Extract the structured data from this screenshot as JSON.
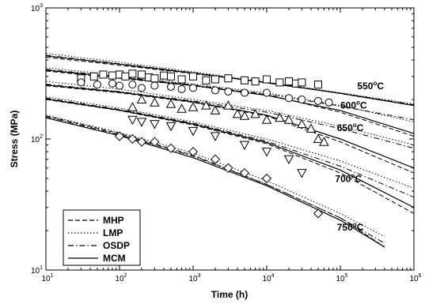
{
  "chart_data": {
    "type": "line",
    "xlabel": "Time (h)",
    "ylabel": "Stress (MPa)",
    "xscale": "log",
    "yscale": "log",
    "xlim": [
      10,
      1000000
    ],
    "ylim": [
      10,
      1000
    ],
    "x_ticks": [
      {
        "value": 10,
        "base": "10",
        "exp": "1"
      },
      {
        "value": 100,
        "base": "10",
        "exp": "2"
      },
      {
        "value": 1000,
        "base": "10",
        "exp": "3"
      },
      {
        "value": 10000,
        "base": "10",
        "exp": "4"
      },
      {
        "value": 100000,
        "base": "10",
        "exp": "5"
      },
      {
        "value": 1000000,
        "base": "10",
        "exp": "6"
      }
    ],
    "y_ticks": [
      {
        "value": 10,
        "base": "10",
        "exp": "1"
      },
      {
        "value": 100,
        "base": "10",
        "exp": "2"
      },
      {
        "value": 1000,
        "base": "10",
        "exp": "3"
      }
    ],
    "legend": {
      "position": "bottom-left",
      "entries": [
        {
          "name": "MHP",
          "dash": "dashed"
        },
        {
          "name": "LMP",
          "dash": "dotted"
        },
        {
          "name": "OSDP",
          "dash": "dashdot"
        },
        {
          "name": "MCM",
          "dash": "solid"
        }
      ]
    },
    "temperatures": [
      {
        "label_base": "550",
        "label_sup": "o",
        "label_unit": "C",
        "label_at": {
          "x": 170000,
          "y": 240
        },
        "marker": "square",
        "points": [
          [
            30,
            290
          ],
          [
            45,
            300
          ],
          [
            60,
            310
          ],
          [
            80,
            305
          ],
          [
            100,
            310
          ],
          [
            120,
            300
          ],
          [
            150,
            315
          ],
          [
            200,
            310
          ],
          [
            250,
            295
          ],
          [
            300,
            290
          ],
          [
            400,
            305
          ],
          [
            500,
            300
          ],
          [
            700,
            285
          ],
          [
            1000,
            300
          ],
          [
            1500,
            280
          ],
          [
            2000,
            285
          ],
          [
            3000,
            290
          ],
          [
            5000,
            280
          ],
          [
            7000,
            275
          ],
          [
            10000,
            285
          ],
          [
            15000,
            270
          ],
          [
            20000,
            275
          ],
          [
            25000,
            265
          ],
          [
            30000,
            270
          ],
          [
            50000,
            260
          ]
        ],
        "curves": {
          "MHP": [
            [
              10,
              420
            ],
            [
              100,
              365
            ],
            [
              1000,
              315
            ],
            [
              10000,
              270
            ],
            [
              100000,
              222
            ],
            [
              1000000,
              180
            ]
          ],
          "LMP": [
            [
              10,
              450
            ],
            [
              100,
              385
            ],
            [
              1000,
              325
            ],
            [
              10000,
              272
            ],
            [
              100000,
              225
            ],
            [
              1000000,
              185
            ]
          ],
          "OSDP": [
            [
              10,
              435
            ],
            [
              100,
              375
            ],
            [
              1000,
              320
            ],
            [
              10000,
              270
            ],
            [
              100000,
              224
            ],
            [
              1000000,
              182
            ]
          ],
          "MCM": [
            [
              10,
              430
            ],
            [
              100,
              372
            ],
            [
              1000,
              318
            ],
            [
              10000,
              268
            ],
            [
              100000,
              223
            ],
            [
              1000000,
              180
            ]
          ]
        }
      },
      {
        "label_base": "600",
        "label_sup": "o",
        "label_unit": "C",
        "label_at": {
          "x": 100000,
          "y": 170
        },
        "marker": "circle",
        "points": [
          [
            30,
            270
          ],
          [
            50,
            260
          ],
          [
            80,
            265
          ],
          [
            100,
            255
          ],
          [
            150,
            260
          ],
          [
            200,
            245
          ],
          [
            300,
            255
          ],
          [
            500,
            250
          ],
          [
            700,
            240
          ],
          [
            1000,
            245
          ],
          [
            2000,
            235
          ],
          [
            3000,
            230
          ],
          [
            5000,
            225
          ],
          [
            10000,
            225
          ],
          [
            20000,
            205
          ],
          [
            30000,
            200
          ],
          [
            50000,
            195
          ],
          [
            70000,
            190
          ]
        ],
        "curves": {
          "MHP": [
            [
              10,
              330
            ],
            [
              100,
              290
            ],
            [
              1000,
              255
            ],
            [
              10000,
              218
            ],
            [
              100000,
              160
            ],
            [
              1000000,
              105
            ]
          ],
          "LMP": [
            [
              10,
              350
            ],
            [
              100,
              305
            ],
            [
              1000,
              262
            ],
            [
              10000,
              225
            ],
            [
              100000,
              180
            ],
            [
              1000000,
              135
            ]
          ],
          "OSDP": [
            [
              10,
              340
            ],
            [
              100,
              298
            ],
            [
              1000,
              258
            ],
            [
              10000,
              220
            ],
            [
              100000,
              178
            ],
            [
              1000000,
              140
            ]
          ],
          "MCM": [
            [
              10,
              335
            ],
            [
              100,
              295
            ],
            [
              1000,
              255
            ],
            [
              10000,
              215
            ],
            [
              100000,
              165
            ],
            [
              1000000,
              110
            ]
          ]
        }
      },
      {
        "label_base": "650",
        "label_sup": "o",
        "label_unit": "C",
        "label_at": {
          "x": 90000,
          "y": 115
        },
        "marker": "triangle",
        "points": [
          [
            150,
            175
          ],
          [
            200,
            200
          ],
          [
            300,
            190
          ],
          [
            500,
            185
          ],
          [
            700,
            170
          ],
          [
            1000,
            175
          ],
          [
            1500,
            180
          ],
          [
            2000,
            165
          ],
          [
            3000,
            180
          ],
          [
            4000,
            155
          ],
          [
            5000,
            150
          ],
          [
            7000,
            155
          ],
          [
            10000,
            140
          ],
          [
            15000,
            145
          ],
          [
            20000,
            140
          ],
          [
            30000,
            130
          ],
          [
            40000,
            120
          ],
          [
            50000,
            100
          ],
          [
            60000,
            95
          ]
        ],
        "curves": {
          "MHP": [
            [
              10,
              255
            ],
            [
              100,
              225
            ],
            [
              1000,
              190
            ],
            [
              10000,
              150
            ],
            [
              100000,
              95
            ],
            [
              1000000,
              55
            ]
          ],
          "LMP": [
            [
              10,
              275
            ],
            [
              100,
              240
            ],
            [
              1000,
              200
            ],
            [
              10000,
              165
            ],
            [
              100000,
              125
            ],
            [
              1000000,
              90
            ]
          ],
          "OSDP": [
            [
              10,
              262
            ],
            [
              100,
              230
            ],
            [
              1000,
              195
            ],
            [
              10000,
              160
            ],
            [
              100000,
              120
            ],
            [
              1000000,
              85
            ]
          ],
          "MCM": [
            [
              10,
              258
            ],
            [
              100,
              228
            ],
            [
              1000,
              192
            ],
            [
              10000,
              152
            ],
            [
              100000,
              100
            ],
            [
              1000000,
              60
            ]
          ]
        }
      },
      {
        "label_base": "700",
        "label_sup": "o",
        "label_unit": "C",
        "label_at": {
          "x": 85000,
          "y": 47
        },
        "marker": "triangle-down",
        "points": [
          [
            150,
            140
          ],
          [
            200,
            135
          ],
          [
            300,
            130
          ],
          [
            500,
            125
          ],
          [
            1000,
            115
          ],
          [
            2000,
            105
          ],
          [
            5000,
            90
          ],
          [
            10000,
            80
          ],
          [
            20000,
            70
          ],
          [
            30000,
            55
          ]
        ],
        "curves": {
          "MHP": [
            [
              10,
              200
            ],
            [
              100,
              165
            ],
            [
              1000,
              128
            ],
            [
              10000,
              92
            ],
            [
              100000,
              55
            ],
            [
              1000000,
              27
            ]
          ],
          "LMP": [
            [
              10,
              210
            ],
            [
              100,
              172
            ],
            [
              1000,
              135
            ],
            [
              10000,
              100
            ],
            [
              100000,
              68
            ],
            [
              1000000,
              42
            ]
          ],
          "OSDP": [
            [
              10,
              205
            ],
            [
              100,
              168
            ],
            [
              1000,
              132
            ],
            [
              10000,
              96
            ],
            [
              100000,
              62
            ],
            [
              1000000,
              36
            ]
          ],
          "MCM": [
            [
              10,
              202
            ],
            [
              100,
              166
            ],
            [
              1000,
              130
            ],
            [
              10000,
              94
            ],
            [
              100000,
              58
            ],
            [
              1000000,
              30
            ]
          ]
        }
      },
      {
        "label_base": "750",
        "label_sup": "o",
        "label_unit": "C",
        "label_at": {
          "x": 90000,
          "y": 20
        },
        "marker": "diamond",
        "points": [
          [
            100,
            105
          ],
          [
            150,
            100
          ],
          [
            200,
            95
          ],
          [
            300,
            95
          ],
          [
            500,
            85
          ],
          [
            1000,
            80
          ],
          [
            2000,
            70
          ],
          [
            3000,
            60
          ],
          [
            5000,
            55
          ],
          [
            10000,
            50
          ],
          [
            50000,
            27
          ]
        ],
        "curves": {
          "MHP": [
            [
              10,
              150
            ],
            [
              100,
              110
            ],
            [
              1000,
              75
            ],
            [
              10000,
              45
            ],
            [
              100000,
              25
            ],
            [
              400000,
              15
            ]
          ],
          "LMP": [
            [
              10,
              152
            ],
            [
              100,
              112
            ],
            [
              1000,
              78
            ],
            [
              10000,
              48
            ],
            [
              100000,
              27
            ],
            [
              400000,
              18
            ]
          ],
          "OSDP": [
            [
              10,
              148
            ],
            [
              100,
              108
            ],
            [
              1000,
              74
            ],
            [
              10000,
              45
            ],
            [
              100000,
              25
            ],
            [
              400000,
              16
            ]
          ],
          "MCM": [
            [
              10,
              145
            ],
            [
              100,
              106
            ],
            [
              1000,
              72
            ],
            [
              10000,
              44
            ],
            [
              100000,
              24
            ],
            [
              400000,
              15
            ]
          ]
        }
      }
    ]
  }
}
